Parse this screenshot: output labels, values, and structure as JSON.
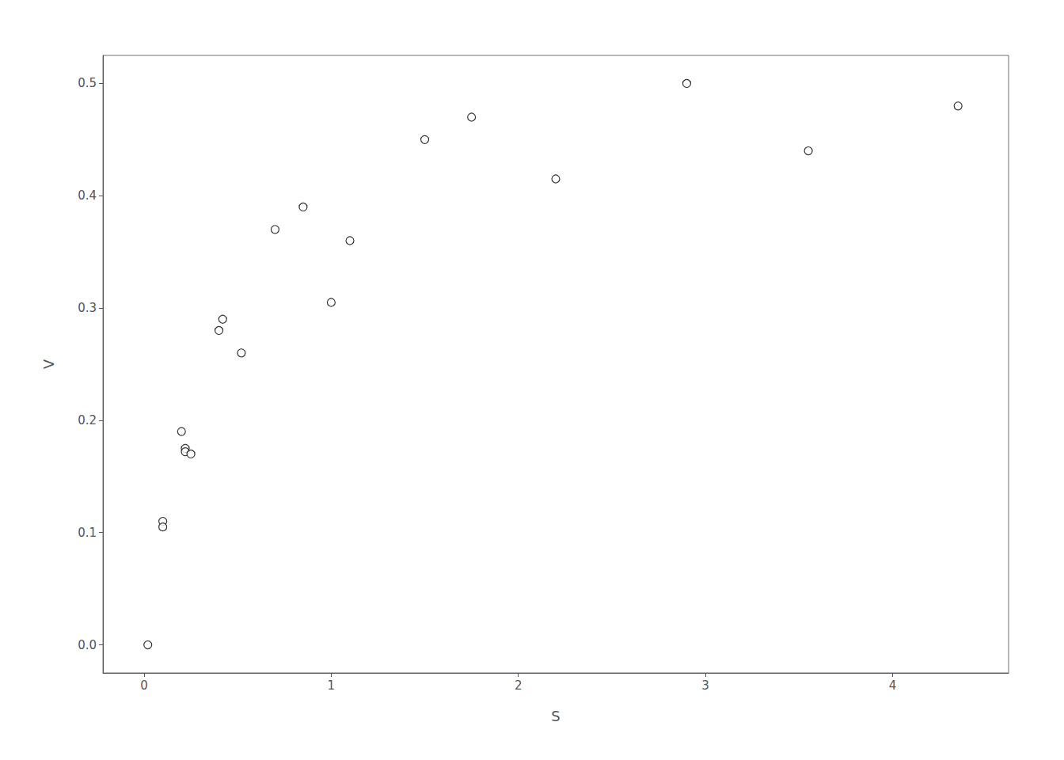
{
  "chart_data": {
    "type": "scatter",
    "x": [
      0.02,
      0.1,
      0.1,
      0.2,
      0.22,
      0.22,
      0.25,
      0.4,
      0.42,
      0.52,
      0.7,
      0.85,
      1.0,
      1.1,
      1.5,
      1.75,
      2.2,
      2.9,
      3.55,
      4.35
    ],
    "y": [
      0.0,
      0.11,
      0.105,
      0.19,
      0.175,
      0.172,
      0.17,
      0.28,
      0.29,
      0.26,
      0.37,
      0.39,
      0.305,
      0.36,
      0.45,
      0.47,
      0.415,
      0.5,
      0.44,
      0.48
    ],
    "xlabel": "S",
    "ylabel": "V",
    "xlim": [
      -0.22,
      4.62
    ],
    "ylim": [
      -0.025,
      0.525
    ],
    "xticks": [
      0,
      1,
      2,
      3,
      4
    ],
    "yticks": [
      {
        "value": 0,
        "label": "0.0"
      },
      0.1,
      0.2,
      0.3,
      0.4,
      0.5
    ],
    "marker": "circle",
    "color": "black",
    "grid": false
  }
}
